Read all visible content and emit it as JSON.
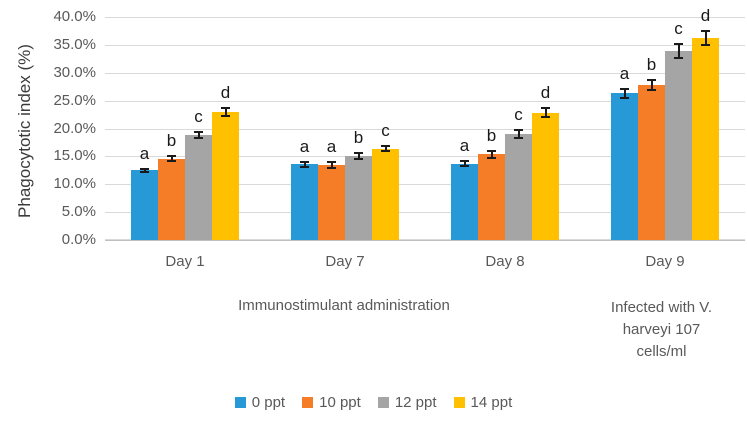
{
  "chart_data": {
    "type": "bar",
    "title": "",
    "ylabel": "Phagocytotic index (%)",
    "xlabel": "",
    "ylim": [
      0,
      40
    ],
    "ytick_step": 5,
    "yticks": [
      "0.0%",
      "5.0%",
      "10.0%",
      "15.0%",
      "20.0%",
      "25.0%",
      "30.0%",
      "35.0%",
      "40.0%"
    ],
    "grid": true,
    "categories": [
      "Day 1",
      "Day 7",
      "Day 8",
      "Day 9"
    ],
    "series": [
      {
        "name": "0 ppt",
        "color": "#2699D6",
        "values": [
          12.5,
          13.6,
          13.7,
          26.3
        ],
        "errors": [
          0.5,
          0.6,
          0.6,
          1.0
        ],
        "letters": [
          "a",
          "a",
          "a",
          "a"
        ]
      },
      {
        "name": "10 ppt",
        "color": "#F57D28",
        "values": [
          14.6,
          13.4,
          15.4,
          27.8
        ],
        "errors": [
          0.6,
          0.7,
          0.8,
          1.0
        ],
        "letters": [
          "b",
          "a",
          "b",
          "b"
        ]
      },
      {
        "name": "12 ppt",
        "color": "#A5A5A5",
        "values": [
          18.8,
          15.1,
          19.0,
          33.9
        ],
        "errors": [
          0.7,
          0.7,
          0.9,
          1.5
        ],
        "letters": [
          "c",
          "b",
          "c",
          "c"
        ]
      },
      {
        "name": "14 ppt",
        "color": "#FFC000",
        "values": [
          23.0,
          16.4,
          22.8,
          36.2
        ],
        "errors": [
          0.9,
          0.7,
          1.0,
          1.4
        ],
        "letters": [
          "d",
          "c",
          "d",
          "d"
        ]
      }
    ],
    "group_annotations": [
      {
        "text": "Immunostimulant administration",
        "span": [
          0,
          2
        ]
      },
      {
        "text_lines": [
          "Infected with V.",
          "harveyi 107",
          "cells/ml"
        ],
        "span": [
          3,
          3
        ]
      }
    ],
    "legend": {
      "position": "bottom",
      "items": [
        "0 ppt",
        "10 ppt",
        "12 ppt",
        "14 ppt"
      ]
    }
  }
}
